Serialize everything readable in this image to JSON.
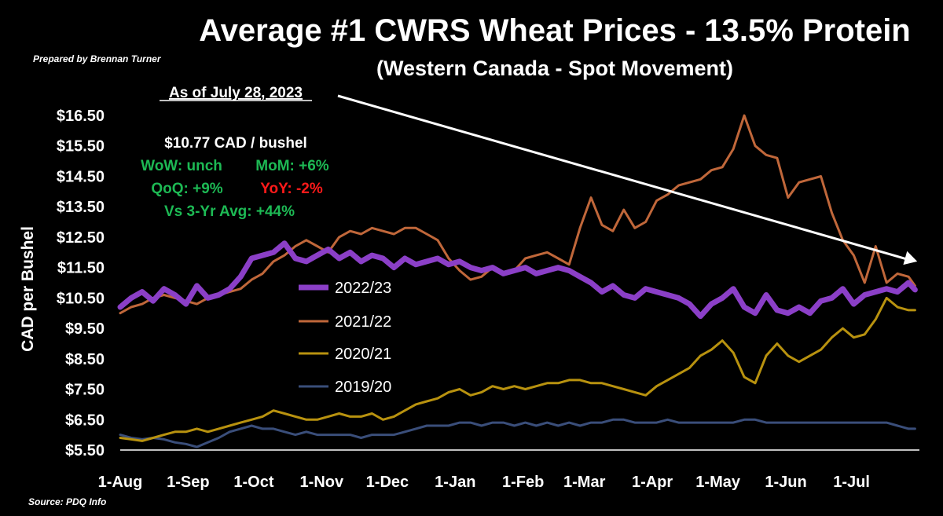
{
  "header": {
    "title": "Average #1 CWRS Wheat Prices - 13.5% Protein",
    "subtitle": "(Western Canada - Spot Movement)",
    "credit": "Prepared by Brennan Turner",
    "source": "Source: PDQ Info"
  },
  "annotation": {
    "as_of": "As of July 28, 2023",
    "price": "$10.77 CAD / bushel",
    "wow": "WoW: unch",
    "mom": "MoM: +6%",
    "qoq": "QoQ: +9%",
    "yoy": "YoY: -2%",
    "vs3yr": "Vs 3-Yr Avg: +44%",
    "colors": {
      "white": "#ffffff",
      "positive": "#1db954",
      "negative": "#ff1a1a"
    }
  },
  "chart_data": {
    "type": "line",
    "xlabel": "",
    "ylabel": "CAD per Bushel",
    "ylim": [
      5.5,
      16.5
    ],
    "yticks": [
      "$16.50",
      "$15.50",
      "$14.50",
      "$13.50",
      "$12.50",
      "$11.50",
      "$10.50",
      "$9.50",
      "$8.50",
      "$7.50",
      "$6.50",
      "$5.50"
    ],
    "ytick_values": [
      16.5,
      15.5,
      14.5,
      13.5,
      12.5,
      11.5,
      10.5,
      9.5,
      8.5,
      7.5,
      6.5,
      5.5
    ],
    "xlim": [
      0,
      365
    ],
    "xticks": [
      "1-Aug",
      "1-Sep",
      "1-Oct",
      "1-Nov",
      "1-Dec",
      "1-Jan",
      "1-Feb",
      "1-Mar",
      "1-Apr",
      "1-May",
      "1-Jun",
      "1-Jul"
    ],
    "xtick_days": [
      0,
      31,
      61,
      92,
      122,
      153,
      184,
      212,
      243,
      273,
      304,
      334
    ],
    "legend_position": "center-left",
    "trend_arrow": {
      "from": [
        116,
        15.9
      ],
      "to": [
        364,
        11.7
      ]
    },
    "series": [
      {
        "name": "2022/23",
        "color": "#8b3fc7",
        "width": 7,
        "x": [
          0,
          5,
          10,
          15,
          20,
          25,
          30,
          35,
          40,
          45,
          50,
          55,
          60,
          65,
          70,
          75,
          80,
          85,
          90,
          95,
          100,
          105,
          110,
          115,
          120,
          125,
          130,
          135,
          140,
          145,
          150,
          155,
          160,
          165,
          170,
          175,
          180,
          185,
          190,
          195,
          200,
          205,
          210,
          215,
          220,
          225,
          230,
          235,
          240,
          245,
          250,
          255,
          260,
          265,
          270,
          275,
          280,
          285,
          290,
          295,
          300,
          305,
          310,
          315,
          320,
          325,
          330,
          335,
          340,
          345,
          350,
          355,
          360,
          363
        ],
        "values": [
          10.2,
          10.5,
          10.7,
          10.4,
          10.8,
          10.6,
          10.3,
          10.9,
          10.5,
          10.6,
          10.8,
          11.2,
          11.8,
          11.9,
          12.0,
          12.3,
          11.8,
          11.7,
          11.9,
          12.1,
          11.8,
          12.0,
          11.7,
          11.9,
          11.8,
          11.5,
          11.8,
          11.6,
          11.7,
          11.8,
          11.6,
          11.7,
          11.5,
          11.4,
          11.5,
          11.3,
          11.4,
          11.5,
          11.3,
          11.4,
          11.5,
          11.4,
          11.2,
          11.0,
          10.7,
          10.9,
          10.6,
          10.5,
          10.8,
          10.7,
          10.6,
          10.5,
          10.3,
          9.9,
          10.3,
          10.5,
          10.8,
          10.2,
          10.0,
          10.6,
          10.1,
          10.0,
          10.2,
          10.0,
          10.4,
          10.5,
          10.8,
          10.3,
          10.6,
          10.7,
          10.8,
          10.7,
          11.0,
          10.77
        ]
      },
      {
        "name": "2021/22",
        "color": "#c0673a",
        "width": 3,
        "x": [
          0,
          5,
          10,
          15,
          20,
          25,
          30,
          35,
          40,
          45,
          50,
          55,
          60,
          65,
          70,
          75,
          80,
          85,
          90,
          95,
          100,
          105,
          110,
          115,
          120,
          125,
          130,
          135,
          140,
          145,
          150,
          155,
          160,
          165,
          170,
          175,
          180,
          185,
          190,
          195,
          200,
          205,
          210,
          215,
          220,
          225,
          230,
          235,
          240,
          245,
          250,
          255,
          260,
          265,
          270,
          275,
          280,
          285,
          290,
          295,
          300,
          305,
          310,
          315,
          320,
          325,
          330,
          335,
          340,
          345,
          350,
          355,
          360,
          363
        ],
        "values": [
          10.0,
          10.2,
          10.3,
          10.5,
          10.6,
          10.5,
          10.4,
          10.3,
          10.5,
          10.6,
          10.7,
          10.8,
          11.1,
          11.3,
          11.7,
          11.9,
          12.2,
          12.4,
          12.2,
          12.0,
          12.5,
          12.7,
          12.6,
          12.8,
          12.7,
          12.6,
          12.8,
          12.8,
          12.6,
          12.4,
          11.8,
          11.4,
          11.1,
          11.2,
          11.5,
          11.3,
          11.4,
          11.8,
          11.9,
          12.0,
          11.8,
          11.6,
          12.8,
          13.8,
          12.9,
          12.7,
          13.4,
          12.8,
          13.0,
          13.7,
          13.9,
          14.2,
          14.3,
          14.4,
          14.7,
          14.8,
          15.4,
          16.5,
          15.5,
          15.2,
          15.1,
          13.8,
          14.3,
          14.4,
          14.5,
          13.3,
          12.4,
          11.9,
          11.0,
          12.2,
          11.0,
          11.3,
          11.2,
          10.9
        ]
      },
      {
        "name": "2020/21",
        "color": "#b8920f",
        "width": 3,
        "x": [
          0,
          5,
          10,
          15,
          20,
          25,
          30,
          35,
          40,
          45,
          50,
          55,
          60,
          65,
          70,
          75,
          80,
          85,
          90,
          95,
          100,
          105,
          110,
          115,
          120,
          125,
          130,
          135,
          140,
          145,
          150,
          155,
          160,
          165,
          170,
          175,
          180,
          185,
          190,
          195,
          200,
          205,
          210,
          215,
          220,
          225,
          230,
          235,
          240,
          245,
          250,
          255,
          260,
          265,
          270,
          275,
          280,
          285,
          290,
          295,
          300,
          305,
          310,
          315,
          320,
          325,
          330,
          335,
          340,
          345,
          350,
          355,
          360,
          363
        ],
        "values": [
          5.9,
          5.85,
          5.8,
          5.9,
          6.0,
          6.1,
          6.1,
          6.2,
          6.1,
          6.2,
          6.3,
          6.4,
          6.5,
          6.6,
          6.8,
          6.7,
          6.6,
          6.5,
          6.5,
          6.6,
          6.7,
          6.6,
          6.6,
          6.7,
          6.5,
          6.6,
          6.8,
          7.0,
          7.1,
          7.2,
          7.4,
          7.5,
          7.3,
          7.4,
          7.6,
          7.5,
          7.6,
          7.5,
          7.6,
          7.7,
          7.7,
          7.8,
          7.8,
          7.7,
          7.7,
          7.6,
          7.5,
          7.4,
          7.3,
          7.6,
          7.8,
          8.0,
          8.2,
          8.6,
          8.8,
          9.1,
          8.7,
          7.9,
          7.7,
          8.6,
          9.0,
          8.6,
          8.4,
          8.6,
          8.8,
          9.2,
          9.5,
          9.2,
          9.3,
          9.8,
          10.5,
          10.2,
          10.1,
          10.1
        ]
      },
      {
        "name": "2019/20",
        "color": "#3a4e7a",
        "width": 3,
        "x": [
          0,
          5,
          10,
          15,
          20,
          25,
          30,
          35,
          40,
          45,
          50,
          55,
          60,
          65,
          70,
          75,
          80,
          85,
          90,
          95,
          100,
          105,
          110,
          115,
          120,
          125,
          130,
          135,
          140,
          145,
          150,
          155,
          160,
          165,
          170,
          175,
          180,
          185,
          190,
          195,
          200,
          205,
          210,
          215,
          220,
          225,
          230,
          235,
          240,
          245,
          250,
          255,
          260,
          265,
          270,
          275,
          280,
          285,
          290,
          295,
          300,
          305,
          310,
          315,
          320,
          325,
          330,
          335,
          340,
          345,
          350,
          355,
          360,
          363
        ],
        "values": [
          6.0,
          5.9,
          5.85,
          5.9,
          5.85,
          5.75,
          5.7,
          5.6,
          5.75,
          5.9,
          6.1,
          6.2,
          6.3,
          6.2,
          6.2,
          6.1,
          6.0,
          6.1,
          6.0,
          6.0,
          6.0,
          6.0,
          5.9,
          6.0,
          6.0,
          6.0,
          6.1,
          6.2,
          6.3,
          6.3,
          6.3,
          6.4,
          6.4,
          6.3,
          6.4,
          6.4,
          6.3,
          6.4,
          6.3,
          6.4,
          6.3,
          6.4,
          6.3,
          6.4,
          6.4,
          6.5,
          6.5,
          6.4,
          6.4,
          6.4,
          6.5,
          6.4,
          6.4,
          6.4,
          6.4,
          6.4,
          6.4,
          6.5,
          6.5,
          6.4,
          6.4,
          6.4,
          6.4,
          6.4,
          6.4,
          6.4,
          6.4,
          6.4,
          6.4,
          6.4,
          6.4,
          6.3,
          6.2,
          6.2
        ]
      }
    ]
  }
}
